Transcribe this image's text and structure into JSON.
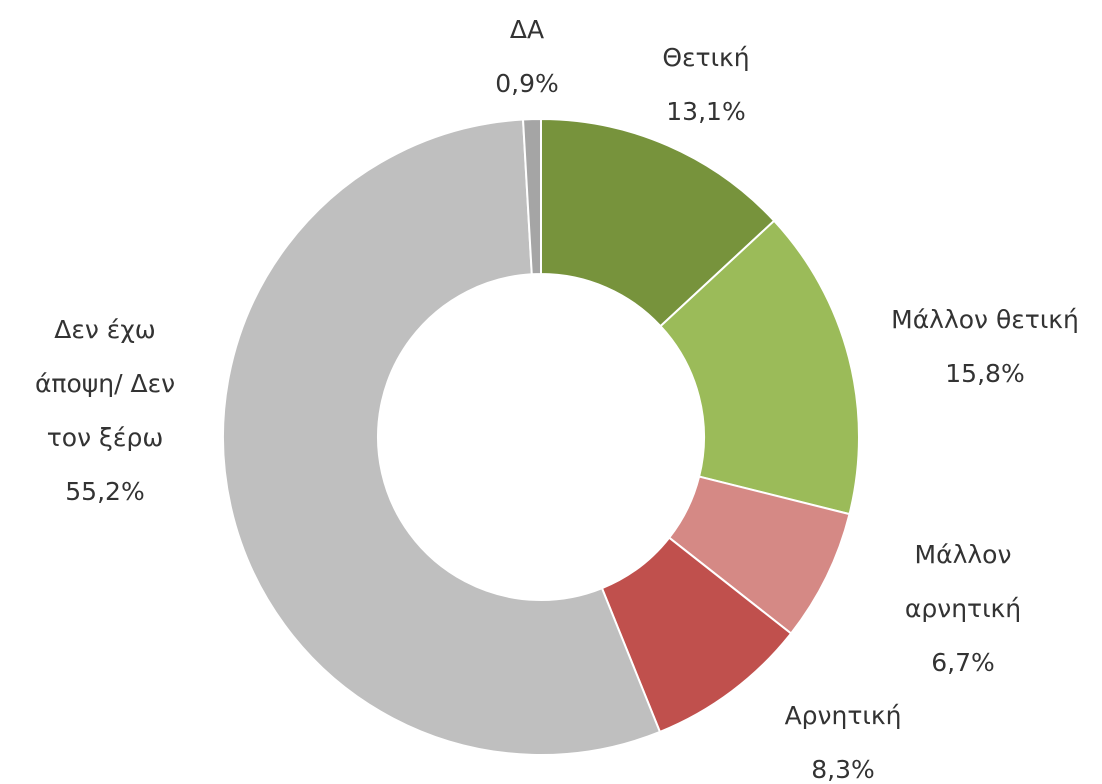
{
  "chart_data": {
    "type": "donut",
    "categories": [
      "Θετική",
      "Μάλλον θετική",
      "Μάλλον αρνητική",
      "Αρνητική",
      "Δεν έχω άποψη/ Δεν τον ξέρω",
      "ΔΑ"
    ],
    "values": [
      13.1,
      15.8,
      6.7,
      8.3,
      55.2,
      0.9
    ],
    "value_labels": [
      "13,1%",
      "15,8%",
      "6,7%",
      "8,3%",
      "55,2%",
      "0,9%"
    ],
    "colors": [
      "#77933c",
      "#9bbb59",
      "#d58985",
      "#c0504d",
      "#bfbfbf",
      "#a5a5a5"
    ]
  }
}
